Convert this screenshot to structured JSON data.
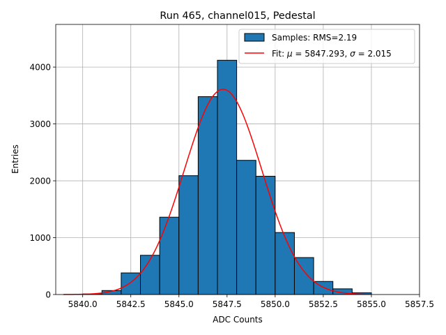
{
  "chart_data": {
    "type": "bar",
    "title": "Run 465, channel015, Pedestal",
    "xlabel": "ADC Counts",
    "ylabel": "Entries",
    "xlim": [
      5838.6,
      5857.5
    ],
    "ylim": [
      0,
      4750
    ],
    "grid": true,
    "legend_position": "top-right",
    "xticks": [
      5840.0,
      5842.5,
      5845.0,
      5847.5,
      5850.0,
      5852.5,
      5855.0,
      5857.5
    ],
    "xtick_labels": [
      "5840.0",
      "5842.5",
      "5845.0",
      "5847.5",
      "5850.0",
      "5852.5",
      "5855.0",
      "5857.5"
    ],
    "yticks": [
      0,
      1000,
      2000,
      3000,
      4000
    ],
    "ytick_labels": [
      "0",
      "1000",
      "2000",
      "3000",
      "4000"
    ],
    "histogram": {
      "name": "Samples: RMS=2.19",
      "color": "#1f77b4",
      "edge_color": "#000000",
      "bin_edges": [
        5840,
        5841,
        5842,
        5843,
        5844,
        5845,
        5846,
        5847,
        5848,
        5849,
        5850,
        5851,
        5852,
        5853,
        5854,
        5855
      ],
      "counts": [
        10,
        70,
        380,
        690,
        1360,
        2090,
        3480,
        4120,
        2360,
        2080,
        1090,
        650,
        230,
        100,
        30
      ]
    },
    "fit": {
      "name": "Fit: μ = 5847.293, σ = 2.015",
      "legend_prefix": "Fit: ",
      "mu_symbol": "μ",
      "mu_value": " = 5847.293, ",
      "sigma_symbol": "σ",
      "sigma_value": " = 2.015",
      "color": "#ff0000",
      "mu": 5847.293,
      "sigma": 2.015,
      "amplitude": 3610,
      "x_range": [
        5839,
        5855
      ]
    }
  }
}
